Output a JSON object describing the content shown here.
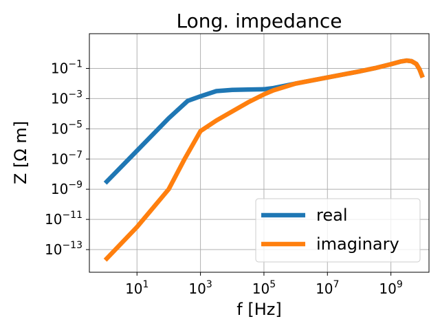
{
  "chart_data": {
    "type": "line",
    "title": "Long. impedance",
    "xlabel": "f [Hz]",
    "ylabel": "Z [Ω m]",
    "xscale": "log",
    "yscale": "log",
    "xlim_exp": [
      -0.5,
      10.2
    ],
    "ylim_exp": [
      -14.5,
      1.3
    ],
    "grid": true,
    "legend_position": "lower-right",
    "xticks": [
      {
        "base": "10",
        "exp": "1",
        "value_exp": 1
      },
      {
        "base": "10",
        "exp": "3",
        "value_exp": 3
      },
      {
        "base": "10",
        "exp": "5",
        "value_exp": 5
      },
      {
        "base": "10",
        "exp": "7",
        "value_exp": 7
      },
      {
        "base": "10",
        "exp": "9",
        "value_exp": 9
      }
    ],
    "yticks": [
      {
        "base": "10",
        "exp": "−13",
        "value_exp": -13
      },
      {
        "base": "10",
        "exp": "−11",
        "value_exp": -11
      },
      {
        "base": "10",
        "exp": "−9",
        "value_exp": -9
      },
      {
        "base": "10",
        "exp": "−7",
        "value_exp": -7
      },
      {
        "base": "10",
        "exp": "−5",
        "value_exp": -5
      },
      {
        "base": "10",
        "exp": "−3",
        "value_exp": -3
      },
      {
        "base": "10",
        "exp": "−1",
        "value_exp": -1
      }
    ],
    "series": [
      {
        "name": "real",
        "color": "#1f77b4",
        "points_log10": [
          [
            0,
            -8.6
          ],
          [
            1,
            -6.45
          ],
          [
            2,
            -4.3
          ],
          [
            2.6,
            -3.15
          ],
          [
            3,
            -2.85
          ],
          [
            3.5,
            -2.5
          ],
          [
            4,
            -2.42
          ],
          [
            4.5,
            -2.4
          ],
          [
            5,
            -2.38
          ],
          [
            5.3,
            -2.3
          ],
          [
            6,
            -2.0
          ],
          [
            7,
            -1.6
          ],
          [
            8,
            -1.2
          ],
          [
            8.5,
            -0.98
          ],
          [
            9,
            -0.72
          ],
          [
            9.3,
            -0.55
          ],
          [
            9.5,
            -0.48
          ],
          [
            9.65,
            -0.52
          ],
          [
            9.8,
            -0.7
          ],
          [
            9.9,
            -1.05
          ],
          [
            10,
            -1.6
          ]
        ]
      },
      {
        "name": "imaginary",
        "color": "#ff7f0e",
        "points_log10": [
          [
            0,
            -13.7
          ],
          [
            1,
            -11.5
          ],
          [
            2,
            -9.0
          ],
          [
            2.5,
            -7.0
          ],
          [
            3,
            -5.15
          ],
          [
            3.5,
            -4.45
          ],
          [
            4,
            -3.85
          ],
          [
            4.5,
            -3.25
          ],
          [
            5,
            -2.72
          ],
          [
            5.3,
            -2.45
          ],
          [
            6,
            -2.0
          ],
          [
            7,
            -1.6
          ],
          [
            8,
            -1.2
          ],
          [
            8.5,
            -0.98
          ],
          [
            9,
            -0.72
          ],
          [
            9.3,
            -0.55
          ],
          [
            9.5,
            -0.48
          ],
          [
            9.65,
            -0.52
          ],
          [
            9.8,
            -0.7
          ],
          [
            9.9,
            -1.05
          ],
          [
            10,
            -1.6
          ]
        ]
      }
    ]
  }
}
